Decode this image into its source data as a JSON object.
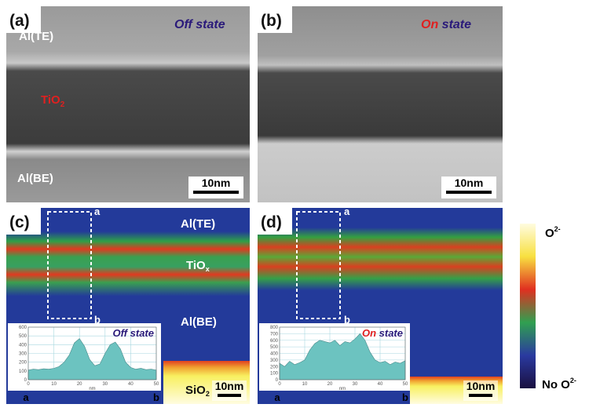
{
  "panel_a": {
    "label": "(a)",
    "top": "Al(TE)",
    "state": "Off state",
    "middle": {
      "text": "TiO",
      "sub": "2"
    },
    "bottom": "Al(BE)",
    "scale": "10nm"
  },
  "panel_b": {
    "label": "(b)",
    "state_on": "On",
    "state_rest": "state",
    "scale": "10nm"
  },
  "panel_c": {
    "label": "(c)",
    "line_start": "a",
    "line_end": "b",
    "top": "Al(TE)",
    "middle": {
      "text": "TiO",
      "sub": "x"
    },
    "bottom": "Al(BE)",
    "substrate": {
      "text": "SiO",
      "sub": "2"
    },
    "scale": "10nm",
    "profile": {
      "type": "area",
      "state": "Off state",
      "x_label": "nm",
      "start": "a",
      "end": "b",
      "x": [
        0,
        2,
        4,
        6,
        8,
        10,
        12,
        14,
        16,
        18,
        20,
        22,
        24,
        26,
        28,
        30,
        32,
        34,
        36,
        38,
        40,
        42,
        44,
        46,
        48,
        50
      ],
      "values": [
        110,
        120,
        115,
        125,
        120,
        130,
        150,
        200,
        280,
        420,
        470,
        380,
        230,
        160,
        180,
        300,
        400,
        430,
        350,
        200,
        140,
        120,
        130,
        115,
        120,
        110
      ],
      "xlim": [
        0,
        50
      ],
      "ylim": [
        0,
        600
      ],
      "xticks": [
        0,
        10,
        20,
        30,
        40,
        50
      ],
      "yticks": [
        0,
        100,
        200,
        300,
        400,
        500,
        600
      ],
      "color": "#6cc3c0"
    }
  },
  "panel_d": {
    "label": "(d)",
    "line_start": "a",
    "line_end": "b",
    "scale": "10nm",
    "profile": {
      "type": "area",
      "state_on": "On",
      "state_rest": "state",
      "x_label": "nm",
      "start": "a",
      "end": "b",
      "x": [
        0,
        2,
        4,
        6,
        8,
        10,
        12,
        14,
        16,
        18,
        20,
        22,
        24,
        26,
        28,
        30,
        32,
        34,
        36,
        38,
        40,
        42,
        44,
        46,
        48,
        50
      ],
      "values": [
        250,
        200,
        280,
        230,
        260,
        300,
        450,
        550,
        600,
        580,
        560,
        600,
        520,
        580,
        560,
        620,
        700,
        600,
        420,
        300,
        260,
        280,
        230,
        270,
        250,
        290
      ],
      "xlim": [
        0,
        50
      ],
      "ylim": [
        0,
        800
      ],
      "xticks": [
        0,
        10,
        20,
        30,
        40,
        50
      ],
      "yticks": [
        0,
        100,
        200,
        300,
        400,
        500,
        600,
        700,
        800
      ],
      "color": "#6cc3c0"
    }
  },
  "colorbar": {
    "high": {
      "text": "O",
      "sup": "2-"
    },
    "low": {
      "text": "No O",
      "sup": "2-"
    }
  }
}
